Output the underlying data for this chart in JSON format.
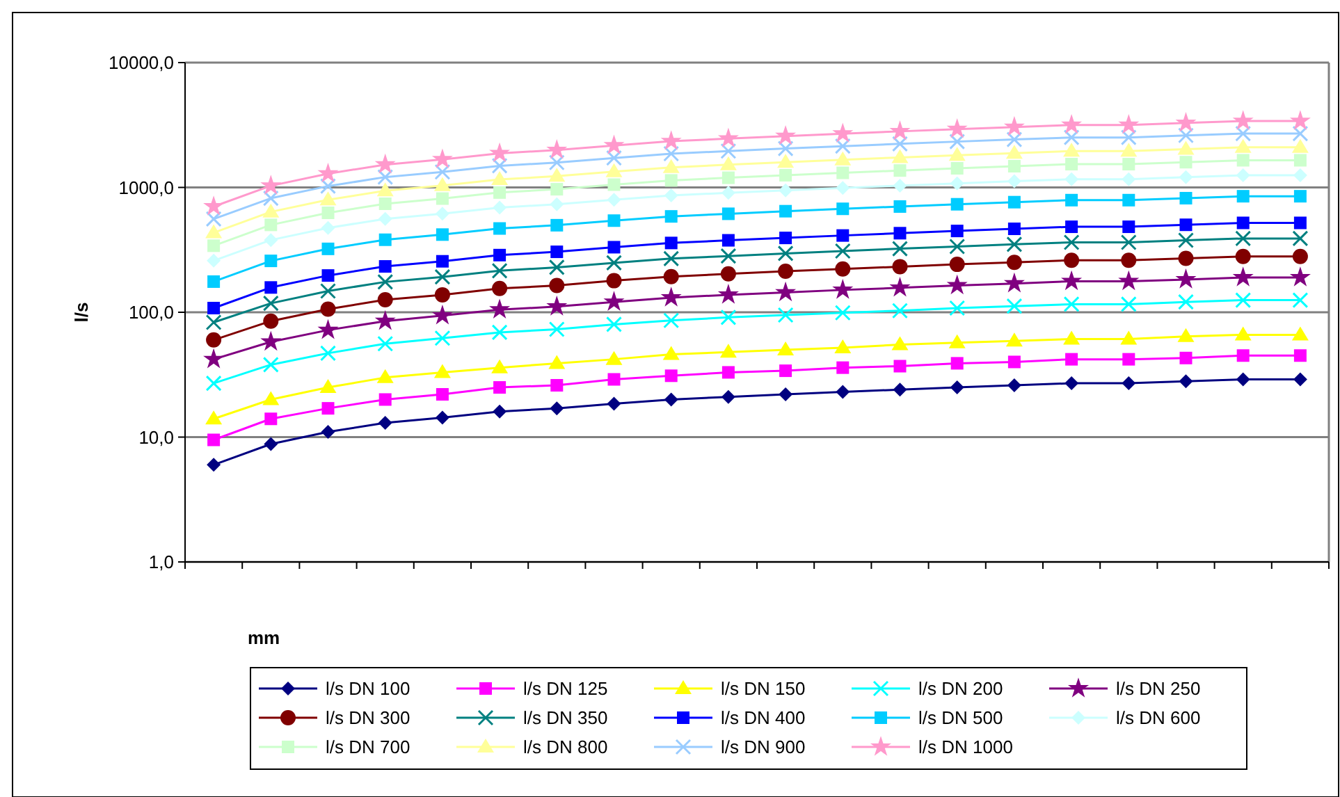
{
  "chart_data": {
    "type": "line",
    "xlabel": "mm",
    "ylabel": "l/s",
    "log": "y",
    "ylim": [
      1,
      10000
    ],
    "yticks": [
      {
        "value": 1,
        "label": "1,0"
      },
      {
        "value": 10,
        "label": "10,0"
      },
      {
        "value": 100,
        "label": "100,0"
      },
      {
        "value": 1000,
        "label": "1000,0"
      },
      {
        "value": 10000,
        "label": "10000,0"
      }
    ],
    "grid": "y",
    "legend": "bottom",
    "tick_labels": "y",
    "categories": [
      null,
      null,
      null,
      null,
      null,
      null,
      null,
      null,
      null,
      null,
      null,
      null,
      null,
      null,
      null,
      null,
      null,
      null,
      null,
      null
    ],
    "series": [
      {
        "name": "l/s DN 100",
        "color": "#000080",
        "marker": "diamond",
        "values": [
          6,
          8.8,
          11,
          13,
          14.3,
          16,
          17,
          18.5,
          20,
          21,
          22,
          23,
          24,
          25,
          26,
          27,
          27,
          28,
          29,
          29
        ]
      },
      {
        "name": "l/s DN 125",
        "color": "#ff00ff",
        "marker": "square",
        "values": [
          9.5,
          14,
          17,
          20,
          22,
          25,
          26,
          29,
          31,
          33,
          34,
          36,
          37,
          39,
          40,
          42,
          42,
          43,
          45,
          45
        ]
      },
      {
        "name": "l/s DN 150",
        "color": "#ffff00",
        "marker": "triangle",
        "values": [
          14,
          20,
          25,
          30,
          33,
          36,
          39,
          42,
          46,
          48,
          50,
          52,
          55,
          57,
          59,
          61,
          61,
          64,
          66,
          66
        ]
      },
      {
        "name": "l/s DN 200",
        "color": "#00ffff",
        "marker": "cross",
        "values": [
          27,
          38,
          47,
          56,
          62,
          69,
          73,
          80,
          86,
          91,
          95,
          99,
          103,
          108,
          112,
          116,
          116,
          121,
          125,
          125
        ]
      },
      {
        "name": "l/s DN 250",
        "color": "#800080",
        "marker": "star",
        "values": [
          42,
          58,
          72,
          85,
          94,
          105,
          111,
          121,
          131,
          138,
          144,
          151,
          157,
          164,
          170,
          177,
          177,
          183,
          190,
          190
        ]
      },
      {
        "name": "l/s DN 300",
        "color": "#800000",
        "marker": "circle",
        "values": [
          60,
          85,
          106,
          126,
          138,
          155,
          164,
          179,
          193,
          203,
          213,
          222,
          232,
          242,
          251,
          261,
          261,
          270,
          280,
          280
        ]
      },
      {
        "name": "l/s DN 350",
        "color": "#008080",
        "marker": "cross",
        "values": [
          83,
          118,
          148,
          175,
          192,
          215,
          229,
          249,
          269,
          282,
          296,
          309,
          323,
          336,
          350,
          363,
          363,
          377,
          390,
          390
        ]
      },
      {
        "name": "l/s DN 400",
        "color": "#0000ff",
        "marker": "square",
        "values": [
          108,
          158,
          197,
          233,
          256,
          287,
          305,
          332,
          359,
          377,
          394,
          412,
          430,
          448,
          466,
          484,
          484,
          502,
          520,
          520
        ]
      },
      {
        "name": "l/s DN 500",
        "color": "#00ccff",
        "marker": "square",
        "values": [
          176,
          258,
          322,
          381,
          419,
          469,
          498,
          542,
          586,
          615,
          645,
          674,
          703,
          733,
          762,
          791,
          791,
          820,
          850,
          850
        ]
      },
      {
        "name": "l/s DN 600",
        "color": "#ccffff",
        "marker": "diamond",
        "values": [
          259,
          379,
          474,
          560,
          616,
          690,
          733,
          797,
          862,
          905,
          948,
          991,
          1034,
          1078,
          1121,
          1164,
          1164,
          1207,
          1250,
          1250
        ]
      },
      {
        "name": "l/s DN 700",
        "color": "#ccffcc",
        "marker": "square",
        "values": [
          341,
          501,
          626,
          740,
          814,
          910,
          967,
          1053,
          1138,
          1195,
          1252,
          1309,
          1366,
          1423,
          1479,
          1536,
          1536,
          1593,
          1650,
          1650
        ]
      },
      {
        "name": "l/s DN 800",
        "color": "#ffff99",
        "marker": "triangle",
        "values": [
          434,
          637,
          796,
          941,
          1035,
          1158,
          1231,
          1339,
          1448,
          1520,
          1593,
          1665,
          1738,
          1810,
          1882,
          1955,
          1955,
          2027,
          2100,
          2100
        ]
      },
      {
        "name": "l/s DN 900",
        "color": "#99ccff",
        "marker": "cross",
        "values": [
          559,
          819,
          1024,
          1210,
          1331,
          1490,
          1583,
          1722,
          1862,
          1955,
          2048,
          2141,
          2234,
          2328,
          2421,
          2514,
          2514,
          2607,
          2700,
          2700
        ]
      },
      {
        "name": "l/s DN 1000",
        "color": "#ff99cc",
        "marker": "star",
        "values": [
          703,
          1031,
          1289,
          1524,
          1676,
          1875,
          1992,
          2168,
          2344,
          2461,
          2578,
          2696,
          2813,
          2930,
          3047,
          3164,
          3164,
          3282,
          3400,
          3400
        ]
      }
    ]
  }
}
